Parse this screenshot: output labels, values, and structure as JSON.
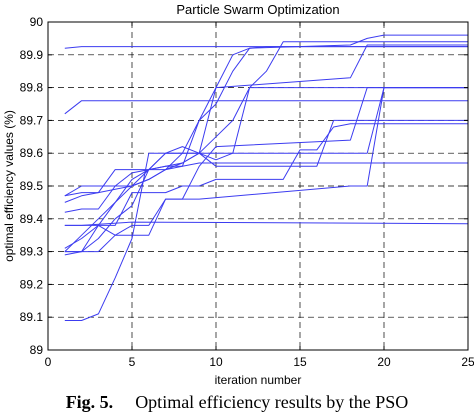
{
  "chart_data": {
    "type": "line",
    "title": "Particle Swarm Optimization",
    "xlabel": "iteration number",
    "ylabel": "optimal efficiency values (%)",
    "xlim": [
      0,
      25
    ],
    "ylim": [
      89,
      90
    ],
    "xticks": [
      "0",
      "5",
      "10",
      "15",
      "20",
      "25"
    ],
    "yticks": [
      "89",
      "89.1",
      "89.2",
      "89.3",
      "89.4",
      "89.5",
      "89.6",
      "89.7",
      "89.8",
      "89.9",
      "90"
    ],
    "grid": true,
    "line_color": "#3c3cf0",
    "series": [
      {
        "x": [
          1,
          2,
          25
        ],
        "y": [
          89.92,
          89.925,
          89.925
        ]
      },
      {
        "x": [
          1,
          2,
          12,
          25
        ],
        "y": [
          89.72,
          89.76,
          89.76,
          89.76
        ]
      },
      {
        "x": [
          1,
          2,
          3,
          4,
          5,
          6,
          7,
          8,
          9,
          10,
          11,
          12,
          18,
          19,
          20,
          25
        ],
        "y": [
          89.47,
          89.48,
          89.48,
          89.49,
          89.5,
          89.52,
          89.55,
          89.6,
          89.7,
          89.75,
          89.85,
          89.92,
          89.93,
          89.95,
          89.96,
          89.96
        ]
      },
      {
        "x": [
          1,
          2,
          3,
          4,
          5,
          6,
          7,
          8,
          9,
          10,
          11,
          12,
          13,
          25
        ],
        "y": [
          89.3,
          89.35,
          89.4,
          89.45,
          89.52,
          89.55,
          89.56,
          89.57,
          89.6,
          89.8,
          89.9,
          89.92,
          89.925,
          89.925
        ]
      },
      {
        "x": [
          1,
          2,
          3,
          4,
          5,
          6,
          7,
          8,
          9,
          10,
          11,
          12,
          13,
          14,
          25
        ],
        "y": [
          89.31,
          89.34,
          89.38,
          89.45,
          89.5,
          89.52,
          89.55,
          89.57,
          89.6,
          89.65,
          89.7,
          89.8,
          89.85,
          89.94,
          89.94
        ]
      },
      {
        "x": [
          1,
          2,
          3,
          4,
          5,
          6,
          7,
          8,
          9,
          10,
          18,
          19,
          25
        ],
        "y": [
          89.45,
          89.47,
          89.48,
          89.55,
          89.55,
          89.55,
          89.56,
          89.56,
          89.7,
          89.8,
          89.83,
          89.93,
          89.93
        ]
      },
      {
        "x": [
          1,
          2,
          3,
          4,
          5,
          6,
          7,
          8,
          9,
          10,
          11,
          12,
          13,
          25
        ],
        "y": [
          89.42,
          89.43,
          89.43,
          89.5,
          89.5,
          89.55,
          89.6,
          89.62,
          89.6,
          89.58,
          89.6,
          89.8,
          89.8,
          89.8
        ]
      },
      {
        "x": [
          1,
          2,
          3,
          4,
          5,
          6,
          7,
          8,
          9,
          25
        ],
        "y": [
          89.47,
          89.5,
          89.5,
          89.5,
          89.54,
          89.55,
          89.55,
          89.56,
          89.57,
          89.57
        ]
      },
      {
        "x": [
          1,
          2,
          3,
          4,
          5,
          6,
          7,
          8,
          9,
          10,
          16,
          17,
          25
        ],
        "y": [
          89.3,
          89.3,
          89.34,
          89.4,
          89.44,
          89.55,
          89.6,
          89.6,
          89.6,
          89.56,
          89.56,
          89.7,
          89.7
        ]
      },
      {
        "x": [
          1,
          2,
          3,
          4,
          5,
          6,
          7,
          8,
          9,
          10,
          14,
          15,
          16,
          17,
          18,
          19,
          20,
          25
        ],
        "y": [
          89.29,
          89.3,
          89.38,
          89.38,
          89.48,
          89.48,
          89.48,
          89.5,
          89.5,
          89.52,
          89.52,
          89.61,
          89.61,
          89.68,
          89.69,
          89.69,
          89.69,
          89.69
        ]
      },
      {
        "x": [
          1,
          2,
          3,
          4,
          5,
          6,
          7,
          8,
          9,
          10,
          18,
          19,
          20,
          25
        ],
        "y": [
          89.3,
          89.3,
          89.3,
          89.35,
          89.38,
          89.38,
          89.46,
          89.46,
          89.56,
          89.62,
          89.64,
          89.8,
          89.8,
          89.8
        ]
      },
      {
        "x": [
          1,
          2,
          3,
          4,
          5,
          6,
          7,
          8,
          9,
          18,
          19,
          20,
          25
        ],
        "y": [
          89.09,
          89.09,
          89.11,
          89.22,
          89.34,
          89.6,
          89.6,
          89.6,
          89.6,
          89.6,
          89.6,
          89.8,
          89.8
        ]
      },
      {
        "x": [
          1,
          2,
          3,
          4,
          5,
          6,
          7,
          8,
          9,
          18,
          19,
          20,
          25
        ],
        "y": [
          89.38,
          89.38,
          89.38,
          89.35,
          89.35,
          89.35,
          89.46,
          89.46,
          89.46,
          89.5,
          89.5,
          89.8,
          89.8
        ]
      },
      {
        "x": [
          1,
          2,
          5,
          25
        ],
        "y": [
          89.38,
          89.38,
          89.39,
          89.385
        ]
      }
    ]
  },
  "caption": {
    "label": "Fig. 5.",
    "text": "Optimal efficiency results by the PSO"
  }
}
